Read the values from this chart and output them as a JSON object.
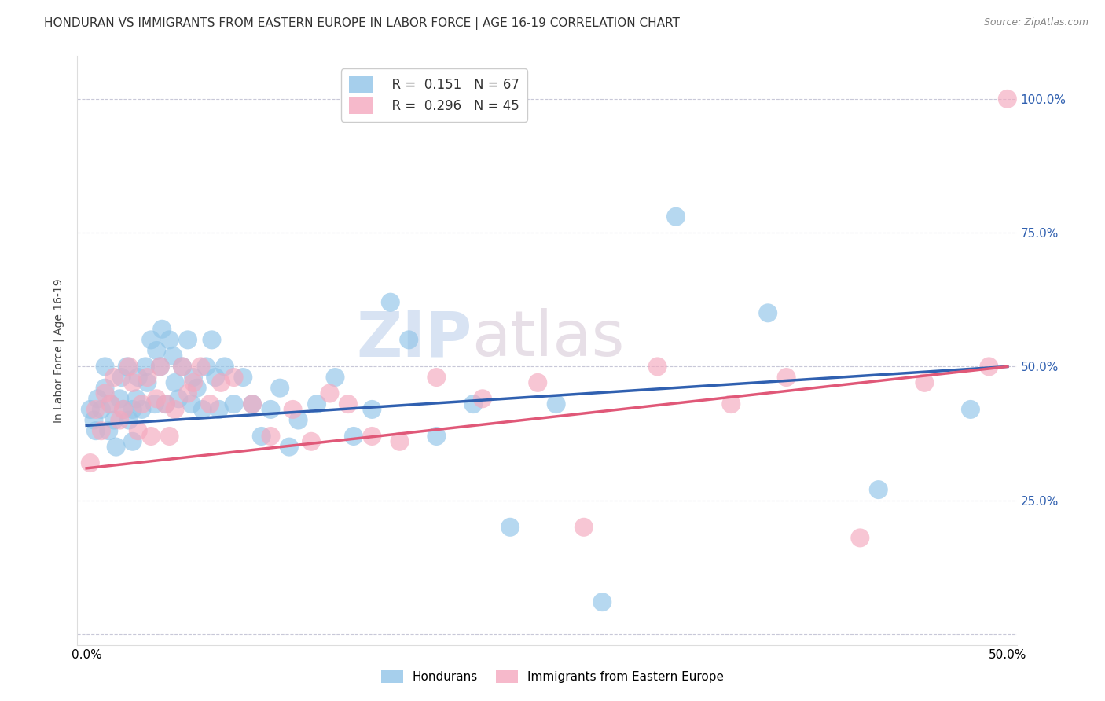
{
  "title": "HONDURAN VS IMMIGRANTS FROM EASTERN EUROPE IN LABOR FORCE | AGE 16-19 CORRELATION CHART",
  "source": "Source: ZipAtlas.com",
  "ylabel": "In Labor Force | Age 16-19",
  "y_ticks": [
    0.0,
    0.25,
    0.5,
    0.75,
    1.0
  ],
  "y_tick_labels": [
    "",
    "25.0%",
    "50.0%",
    "75.0%",
    "100.0%"
  ],
  "x_ticks": [
    0.0,
    0.1,
    0.2,
    0.3,
    0.4,
    0.5
  ],
  "x_tick_labels": [
    "0.0%",
    "",
    "",
    "",
    "",
    "50.0%"
  ],
  "blue_color": "#90c4e8",
  "pink_color": "#f4a8be",
  "blue_line_color": "#3060b0",
  "pink_line_color": "#e05878",
  "watermark_zip": "ZIP",
  "watermark_atlas": "atlas",
  "blue_intercept": 0.39,
  "blue_slope": 0.22,
  "pink_intercept": 0.31,
  "pink_slope": 0.38,
  "blue_points_x": [
    0.002,
    0.004,
    0.005,
    0.006,
    0.008,
    0.01,
    0.01,
    0.012,
    0.013,
    0.015,
    0.016,
    0.018,
    0.019,
    0.02,
    0.022,
    0.023,
    0.025,
    0.025,
    0.027,
    0.028,
    0.03,
    0.032,
    0.033,
    0.035,
    0.037,
    0.038,
    0.04,
    0.041,
    0.043,
    0.045,
    0.047,
    0.048,
    0.05,
    0.052,
    0.055,
    0.057,
    0.058,
    0.06,
    0.063,
    0.065,
    0.068,
    0.07,
    0.072,
    0.075,
    0.08,
    0.085,
    0.09,
    0.095,
    0.1,
    0.105,
    0.11,
    0.115,
    0.125,
    0.135,
    0.145,
    0.155,
    0.165,
    0.175,
    0.19,
    0.21,
    0.23,
    0.255,
    0.28,
    0.32,
    0.37,
    0.43,
    0.48
  ],
  "blue_points_y": [
    0.42,
    0.4,
    0.38,
    0.44,
    0.42,
    0.46,
    0.5,
    0.38,
    0.43,
    0.4,
    0.35,
    0.44,
    0.48,
    0.42,
    0.5,
    0.4,
    0.42,
    0.36,
    0.44,
    0.48,
    0.42,
    0.5,
    0.47,
    0.55,
    0.43,
    0.53,
    0.5,
    0.57,
    0.43,
    0.55,
    0.52,
    0.47,
    0.44,
    0.5,
    0.55,
    0.43,
    0.48,
    0.46,
    0.42,
    0.5,
    0.55,
    0.48,
    0.42,
    0.5,
    0.43,
    0.48,
    0.43,
    0.37,
    0.42,
    0.46,
    0.35,
    0.4,
    0.43,
    0.48,
    0.37,
    0.42,
    0.62,
    0.55,
    0.37,
    0.43,
    0.2,
    0.43,
    0.06,
    0.78,
    0.6,
    0.27,
    0.42
  ],
  "pink_points_x": [
    0.002,
    0.005,
    0.008,
    0.01,
    0.013,
    0.015,
    0.018,
    0.02,
    0.023,
    0.025,
    0.028,
    0.03,
    0.033,
    0.035,
    0.038,
    0.04,
    0.043,
    0.045,
    0.048,
    0.052,
    0.055,
    0.058,
    0.062,
    0.067,
    0.073,
    0.08,
    0.09,
    0.1,
    0.112,
    0.122,
    0.132,
    0.142,
    0.155,
    0.17,
    0.19,
    0.215,
    0.245,
    0.27,
    0.31,
    0.35,
    0.38,
    0.42,
    0.455,
    0.49,
    0.5
  ],
  "pink_points_y": [
    0.32,
    0.42,
    0.38,
    0.45,
    0.43,
    0.48,
    0.4,
    0.42,
    0.5,
    0.47,
    0.38,
    0.43,
    0.48,
    0.37,
    0.44,
    0.5,
    0.43,
    0.37,
    0.42,
    0.5,
    0.45,
    0.47,
    0.5,
    0.43,
    0.47,
    0.48,
    0.43,
    0.37,
    0.42,
    0.36,
    0.45,
    0.43,
    0.37,
    0.36,
    0.48,
    0.44,
    0.47,
    0.2,
    0.5,
    0.43,
    0.48,
    0.18,
    0.47,
    0.5,
    1.0
  ]
}
